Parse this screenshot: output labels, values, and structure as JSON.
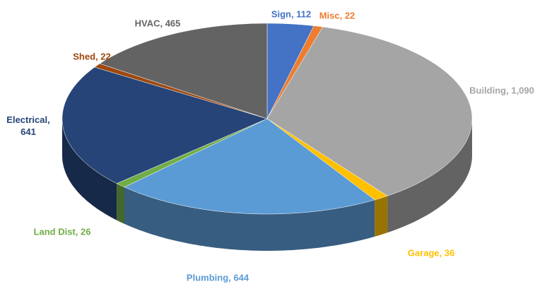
{
  "chart_data": {
    "type": "pie3d",
    "categories": [
      "Sign",
      "Misc",
      "Building",
      "Garage",
      "Plumbing",
      "Land Dist",
      "Electrical",
      "Shed",
      "HVAC"
    ],
    "values": [
      112,
      22,
      1090,
      36,
      644,
      26,
      641,
      22,
      465
    ],
    "value_labels": [
      "Sign, 112",
      "Misc, 22",
      "Building, 1,090",
      "Garage, 36",
      "Plumbing, 644",
      "Land Dist, 26",
      "Electrical, 641",
      "Shed, 22",
      "HVAC, 465"
    ],
    "colors": [
      "#4472c4",
      "#ed7d31",
      "#a5a5a5",
      "#ffc000",
      "#5b9bd5",
      "#70ad47",
      "#264478",
      "#9e480e",
      "#636363"
    ]
  }
}
